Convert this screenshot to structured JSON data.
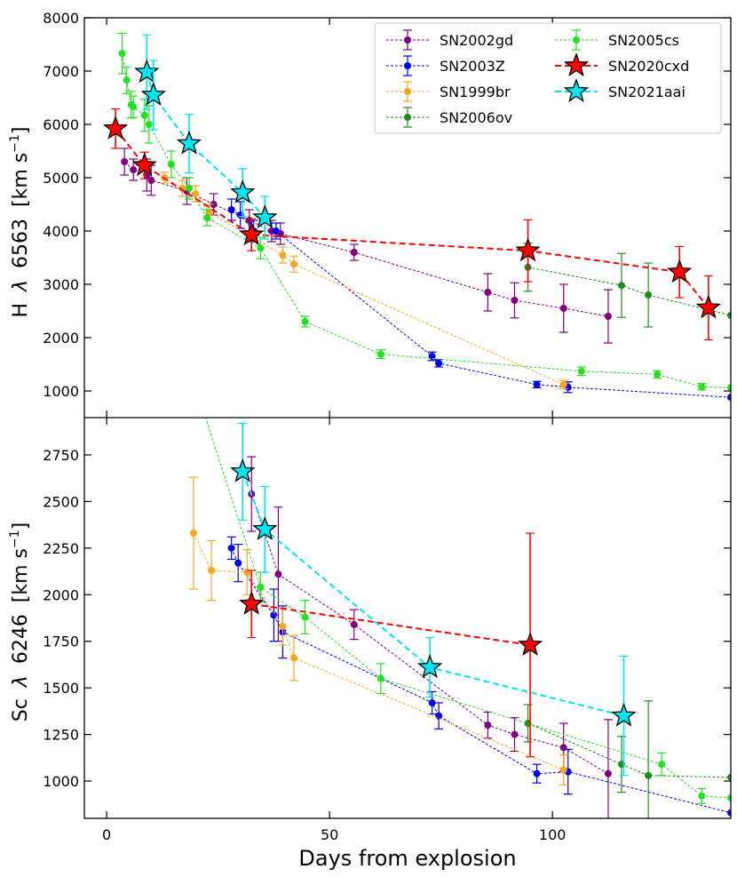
{
  "chart_data": [
    {
      "type": "scatter",
      "panel": "top",
      "ylabel_main": "H",
      "ylabel_lambda": "λ",
      "ylabel_line": "6563",
      "ylabel_unit_open": "[km s",
      "ylabel_unit_exp": "−1",
      "ylabel_unit_close": "]",
      "xlim": [
        -5,
        140
      ],
      "ylim": [
        500,
        8000
      ],
      "yticks": [
        1000,
        2000,
        3000,
        4000,
        5000,
        6000,
        7000,
        8000
      ],
      "series": [
        {
          "name": "SN2002gd",
          "color": "#800080",
          "marker": "circle",
          "x": [
            4,
            6,
            9,
            10,
            18,
            24,
            32,
            37,
            39,
            55.5,
            85.5,
            91.5,
            102.5,
            112.5
          ],
          "y": [
            5300,
            5150,
            5050,
            4950,
            4750,
            4500,
            4200,
            4000,
            3950,
            3600,
            2850,
            2700,
            2550,
            2400
          ],
          "err": [
            250,
            200,
            300,
            280,
            250,
            200,
            200,
            200,
            200,
            150,
            350,
            330,
            450,
            500
          ]
        },
        {
          "name": "SN2003Z",
          "color": "#0000ee",
          "marker": "circle",
          "x": [
            28,
            30,
            33,
            38,
            73,
            74.5,
            96.5,
            103.5,
            140
          ],
          "y": [
            4400,
            4300,
            4000,
            4000,
            1650,
            1520,
            1120,
            1070,
            880
          ],
          "err": [
            200,
            250,
            200,
            150,
            80,
            70,
            60,
            100,
            0
          ]
        },
        {
          "name": "SN1999br",
          "color": "#f5a623",
          "marker": "circle",
          "x": [
            13,
            17,
            20,
            23,
            39.5,
            42,
            102.5
          ],
          "y": [
            5000,
            4800,
            4700,
            4350,
            3550,
            3380,
            1120
          ],
          "err": [
            100,
            150,
            150,
            150,
            150,
            150,
            80
          ]
        },
        {
          "name": "SN2006ov",
          "color": "#1e8c1e",
          "marker": "circle",
          "x": [
            94.5,
            115.5,
            121.5,
            140
          ],
          "y": [
            3320,
            2980,
            2800,
            2420
          ],
          "err": [
            450,
            600,
            600,
            0
          ]
        },
        {
          "name": "SN2005cs",
          "color": "#22e022",
          "marker": "circle",
          "x": [
            3.5,
            4.5,
            5.5,
            6,
            8.5,
            9.5,
            14.5,
            18.5,
            22.5,
            34.5,
            44.5,
            61.5,
            106.5,
            123.5,
            133.5,
            140
          ],
          "y": [
            7330,
            6830,
            6370,
            6330,
            6170,
            6000,
            5250,
            4800,
            4250,
            3680,
            2300,
            1690,
            1370,
            1310,
            1080,
            1060
          ],
          "err": [
            380,
            250,
            250,
            200,
            300,
            350,
            250,
            200,
            150,
            200,
            100,
            80,
            80,
            70,
            60,
            0
          ]
        },
        {
          "name": "SN2020cxd",
          "color": "#ff0000",
          "marker": "star",
          "x": [
            2,
            8.5,
            32.5,
            94.5,
            128.5,
            135
          ],
          "y": [
            5920,
            5230,
            3930,
            3630,
            3230,
            2560
          ],
          "err": [
            370,
            250,
            300,
            580,
            480,
            600
          ]
        },
        {
          "name": "SN2021aai",
          "color": "#00e5ee",
          "marker": "star",
          "x": [
            9,
            10.5,
            18.5,
            30.5,
            35.5
          ],
          "y": [
            6980,
            6550,
            5640,
            4720,
            4250
          ],
          "err": [
            700,
            650,
            550,
            450,
            400
          ]
        }
      ]
    },
    {
      "type": "scatter",
      "panel": "bottom",
      "ylabel_main": "Sc",
      "ylabel_lambda": "λ",
      "ylabel_line": "6246",
      "ylabel_unit_open": "[km s",
      "ylabel_unit_exp": "−1",
      "ylabel_unit_close": "]",
      "xlabel": "Days from explosion",
      "xlim": [
        -5,
        140
      ],
      "ylim": [
        800,
        2950
      ],
      "yticks": [
        1000,
        1250,
        1500,
        1750,
        2000,
        2250,
        2500,
        2750
      ],
      "xticks": [
        0,
        50,
        100
      ],
      "series": [
        {
          "name": "SN2002gd",
          "color": "#800080",
          "marker": "circle",
          "x": [
            32.5,
            38.5,
            55.5,
            85.5,
            91.5,
            102.5,
            112.5
          ],
          "y": [
            2540,
            2110,
            1840,
            1300,
            1250,
            1180,
            1040
          ],
          "err": [
            200,
            360,
            80,
            70,
            90,
            130,
            290
          ]
        },
        {
          "name": "SN2003Z",
          "color": "#0000ee",
          "marker": "circle",
          "x": [
            28,
            29.5,
            37.5,
            39.5,
            73,
            74.5,
            96.5,
            103.5,
            140
          ],
          "y": [
            2250,
            2170,
            1890,
            1800,
            1420,
            1350,
            1040,
            1050,
            830
          ],
          "err": [
            60,
            100,
            140,
            140,
            60,
            70,
            50,
            120,
            0
          ]
        },
        {
          "name": "SN1999br",
          "color": "#f5a623",
          "marker": "circle",
          "x": [
            19.5,
            23.5,
            31.5,
            39.5,
            42,
            102.5
          ],
          "y": [
            2330,
            2130,
            2120,
            1830,
            1660,
            1060
          ],
          "err": [
            300,
            160,
            120,
            100,
            120,
            80
          ]
        },
        {
          "name": "SN2006ov",
          "color": "#1e8c1e",
          "marker": "circle",
          "x": [
            94.5,
            115.5,
            121.5,
            140
          ],
          "y": [
            1310,
            1090,
            1030,
            1020
          ],
          "err": [
            100,
            150,
            400,
            0
          ]
        },
        {
          "name": "SN2005cs",
          "color": "#22e022",
          "marker": "circle",
          "x": [
            21.5,
            34.5,
            44.5,
            61.5,
            124.5,
            133.5,
            140
          ],
          "y": [
            3000,
            2040,
            1880,
            1550,
            1090,
            920,
            910
          ],
          "err": [
            0,
            80,
            90,
            80,
            60,
            40,
            0
          ]
        },
        {
          "name": "SN2020cxd",
          "color": "#ff0000",
          "marker": "star",
          "x": [
            32.5,
            95
          ],
          "y": [
            1950,
            1730
          ],
          "err": [
            180,
            600
          ]
        },
        {
          "name": "SN2021aai",
          "color": "#00e5ee",
          "marker": "star",
          "x": [
            30.5,
            35.5,
            72.5,
            116
          ],
          "y": [
            2660,
            2350,
            1610,
            1350
          ],
          "err": [
            260,
            230,
            160,
            320
          ]
        }
      ]
    }
  ],
  "legend": {
    "placement": "top-right",
    "entries": [
      "SN2002gd",
      "SN2003Z",
      "SN1999br",
      "SN2006ov",
      "SN2005cs",
      "SN2020cxd",
      "SN2021aai"
    ]
  }
}
